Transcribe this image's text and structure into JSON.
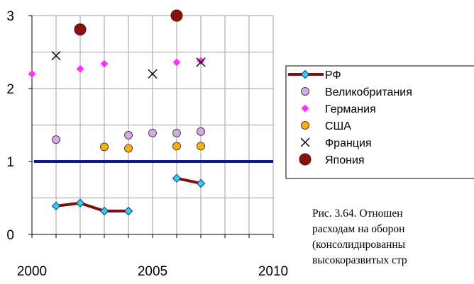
{
  "chart_data": {
    "type": "scatter",
    "title": "",
    "xlabel": "",
    "ylabel": "",
    "xlim": [
      2000,
      2010
    ],
    "ylim": [
      0,
      3
    ],
    "x_ticks": [
      2000,
      2005,
      2010
    ],
    "y_ticks": [
      0,
      1,
      2,
      3
    ],
    "grid": true,
    "legend_position": "right",
    "series": [
      {
        "name": "РФ",
        "color": "#7b1010",
        "marker": "diamond",
        "marker_color": "#33ccee",
        "connected": true,
        "points": [
          [
            2001,
            0.39
          ],
          [
            2002,
            0.43
          ],
          [
            2003,
            0.32
          ],
          [
            2004,
            0.32
          ],
          [
            null,
            null
          ],
          [
            2006,
            0.77
          ],
          [
            2007,
            0.7
          ]
        ]
      },
      {
        "name": "Великобритания",
        "color": "#d7a8e8",
        "marker": "circle",
        "points": [
          [
            2001,
            1.3
          ],
          [
            2004,
            1.36
          ],
          [
            2005,
            1.39
          ],
          [
            2006,
            1.39
          ],
          [
            2007,
            1.41
          ]
        ]
      },
      {
        "name": "Германия",
        "color": "#ff33ff",
        "marker": "diamond",
        "points": [
          [
            2000,
            2.2
          ],
          [
            2002,
            2.27
          ],
          [
            2003,
            2.34
          ],
          [
            2006,
            2.36
          ],
          [
            2007,
            2.38
          ]
        ]
      },
      {
        "name": "США",
        "color": "#ffb000",
        "marker": "circle",
        "points": [
          [
            2003,
            1.2
          ],
          [
            2004,
            1.18
          ],
          [
            2006,
            1.21
          ],
          [
            2007,
            1.21
          ]
        ]
      },
      {
        "name": "Франция",
        "color": "#000000",
        "marker": "x",
        "points": [
          [
            2001,
            2.45
          ],
          [
            2005,
            2.2
          ],
          [
            2007,
            2.36
          ]
        ]
      },
      {
        "name": "Япония",
        "color": "#8b1010",
        "marker": "bigcircle",
        "points": [
          [
            2002,
            2.81
          ],
          [
            2006,
            3.0
          ]
        ]
      }
    ],
    "reference_line": {
      "y": 1,
      "color": "#0a1a8c"
    }
  },
  "caption": [
    "Рис. 3.64.  Отношен",
    "расходам на оборон",
    "(консолидированны",
    "высокоразвитых стр"
  ]
}
